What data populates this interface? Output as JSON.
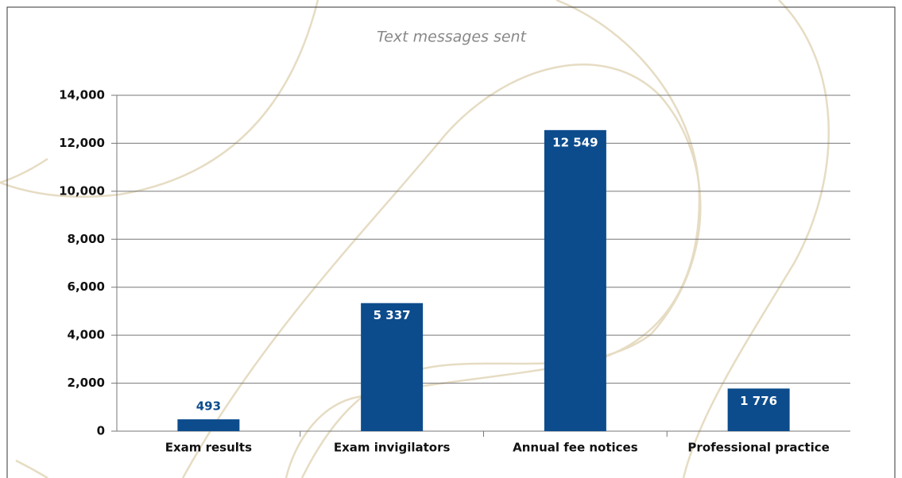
{
  "chart_data": {
    "type": "bar",
    "title": "Text messages sent",
    "categories": [
      "Exam results",
      "Exam invigilators",
      "Annual fee notices",
      "Professional practice"
    ],
    "values": [
      493,
      5337,
      12549,
      1776
    ],
    "value_labels": [
      "493",
      "5 337",
      "12 549",
      "1 776"
    ],
    "color": "#0c4c8c",
    "ylim": [
      0,
      14000
    ],
    "yticks": [
      0,
      {
        "value": 2000,
        "label": "2,000"
      },
      {
        "value": 4000,
        "label": "4,000"
      },
      {
        "value": 6000,
        "label": "6,000"
      },
      {
        "value": 8000,
        "label": "8,000"
      },
      {
        "value": 10000,
        "label": "10,000"
      },
      {
        "value": 12000,
        "label": "12,000"
      },
      {
        "value": 14000,
        "label": "14,000"
      }
    ],
    "grid": true
  }
}
